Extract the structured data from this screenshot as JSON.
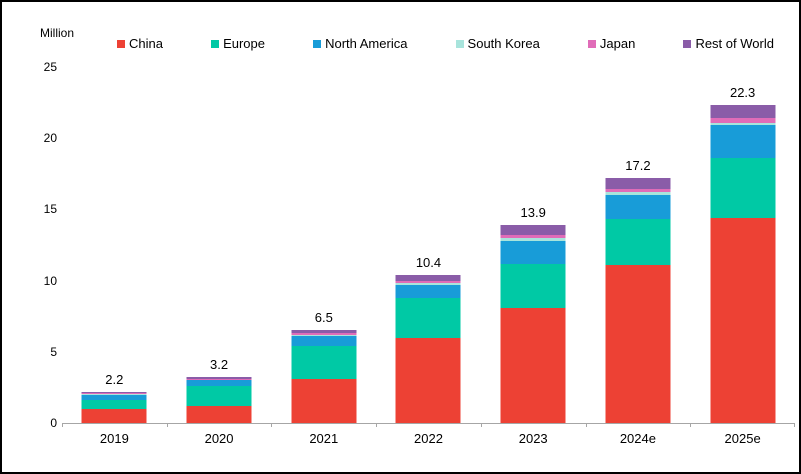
{
  "chart": {
    "unit_label": "Million",
    "axis_color": "#a6a6a6",
    "text_color": "#000000",
    "background_color": "#ffffff",
    "border_color": "#000000"
  },
  "chart_data": {
    "type": "bar",
    "stacked": true,
    "title": "",
    "xlabel": "",
    "ylabel": "Million",
    "ylim": [
      0,
      25
    ],
    "y_ticks": [
      0,
      5,
      10,
      15,
      20,
      25
    ],
    "grid": false,
    "legend_position": "top",
    "categories": [
      "2019",
      "2020",
      "2021",
      "2022",
      "2023",
      "2024e",
      "2025e"
    ],
    "series": [
      {
        "name": "China",
        "color": "#ed4134",
        "values": [
          1.0,
          1.2,
          3.1,
          6.0,
          8.1,
          11.1,
          14.4
        ]
      },
      {
        "name": "Europe",
        "color": "#00c9a5",
        "values": [
          0.6,
          1.4,
          2.3,
          2.8,
          3.1,
          3.2,
          4.2
        ]
      },
      {
        "name": "North America",
        "color": "#189cd8",
        "values": [
          0.4,
          0.4,
          0.7,
          0.9,
          1.6,
          1.7,
          2.3
        ]
      },
      {
        "name": "South Korea",
        "color": "#a8e4dc",
        "values": [
          0.04,
          0.05,
          0.1,
          0.15,
          0.2,
          0.2,
          0.2
        ]
      },
      {
        "name": "Japan",
        "color": "#e06cb8",
        "values": [
          0.04,
          0.05,
          0.1,
          0.15,
          0.2,
          0.2,
          0.3
        ]
      },
      {
        "name": "Rest of World",
        "color": "#8a5ca8",
        "values": [
          0.12,
          0.1,
          0.2,
          0.4,
          0.7,
          0.8,
          0.9
        ]
      }
    ],
    "total_labels": [
      "2.2",
      "3.2",
      "6.5",
      "10.4",
      "13.9",
      "17.2",
      "22.3"
    ]
  }
}
